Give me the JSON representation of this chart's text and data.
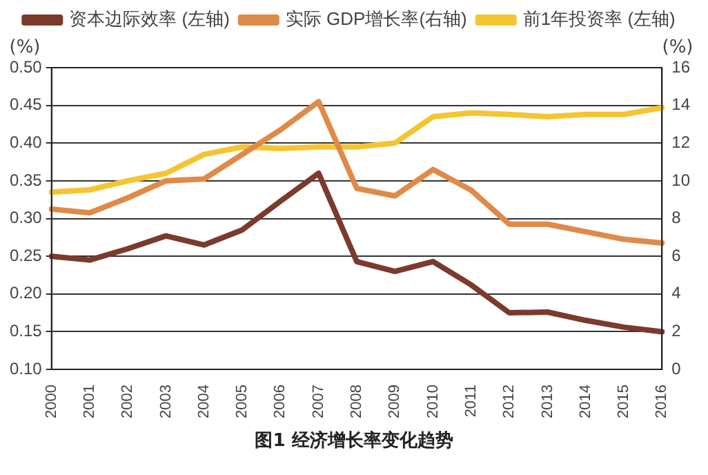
{
  "chart_data": {
    "type": "line",
    "title": "图1  经济增长率变化趋势",
    "ylabel": "(%)",
    "y2label": "(%)",
    "categories": [
      "2000",
      "2001",
      "2002",
      "2003",
      "2004",
      "2005",
      "2006",
      "2007",
      "2008",
      "2009",
      "2010",
      "2011",
      "2012",
      "2013",
      "2014",
      "2015",
      "2016"
    ],
    "series": [
      {
        "name": "资本边际效率 (左轴)",
        "color": "#7b3a2c",
        "values": [
          0.25,
          0.245,
          0.26,
          0.277,
          0.265,
          0.285,
          0.323,
          0.36,
          0.243,
          0.23,
          0.243,
          0.212,
          0.175,
          0.176,
          0.165,
          0.156,
          0.15
        ]
      },
      {
        "name": "实际 GDP增长率(右轴)",
        "color": "#e08a48",
        "axis": "y2",
        "values": [
          8.5,
          8.3,
          9.1,
          10.0,
          10.1,
          11.4,
          12.7,
          14.2,
          9.6,
          9.2,
          10.6,
          9.5,
          7.7,
          7.7,
          7.3,
          6.9,
          6.7
        ]
      },
      {
        "name": "前1年投资率 (左轴)",
        "color": "#f5c531",
        "values": [
          0.335,
          0.338,
          0.35,
          0.36,
          0.385,
          0.395,
          0.393,
          0.395,
          0.395,
          0.4,
          0.435,
          0.44,
          0.438,
          0.435,
          0.438,
          0.438,
          0.447
        ]
      }
    ],
    "ylim": [
      0.1,
      0.5
    ],
    "yticks": [
      {
        "value": 0.1,
        "label": "0.10"
      },
      {
        "value": 0.15,
        "label": "0.15"
      },
      {
        "value": 0.2,
        "label": "0.20"
      },
      {
        "value": 0.25,
        "label": "0.25"
      },
      {
        "value": 0.3,
        "label": "0.30"
      },
      {
        "value": 0.35,
        "label": "0.35"
      },
      {
        "value": 0.4,
        "label": "0.40"
      },
      {
        "value": 0.45,
        "label": "0.45"
      },
      {
        "value": 0.5,
        "label": "0.50"
      }
    ],
    "y2lim": [
      0,
      16
    ],
    "y2ticks": [
      0,
      2,
      4,
      6,
      8,
      10,
      12,
      14,
      16
    ],
    "grid": "y",
    "legend": "top",
    "marker": "none",
    "line_style": "solid"
  }
}
